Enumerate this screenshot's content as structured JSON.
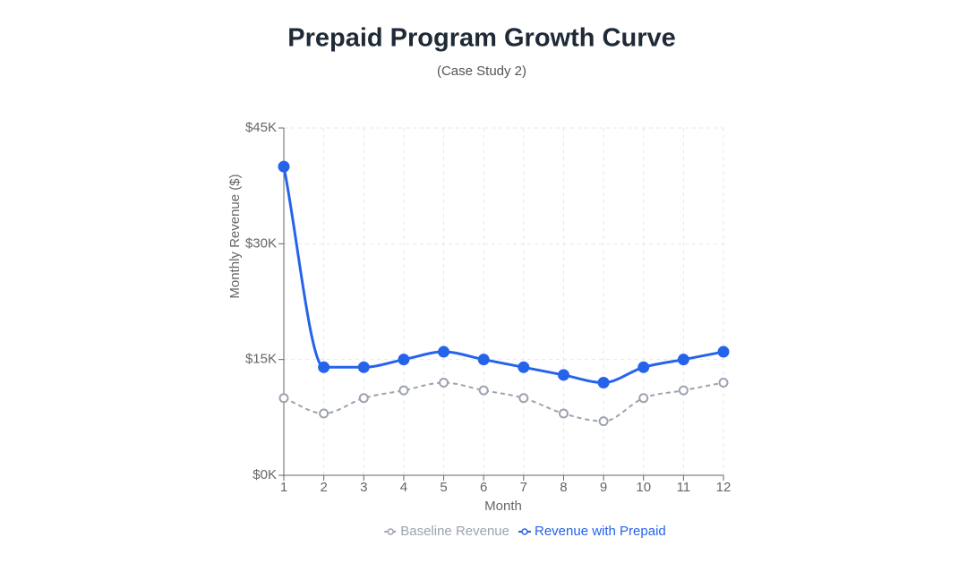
{
  "chart_data": {
    "type": "line",
    "title": "Prepaid Program Growth Curve",
    "subtitle": "(Case Study 2)",
    "x_label": "Month",
    "y_label": "Monthly Revenue ($)",
    "x": [
      1,
      2,
      3,
      4,
      5,
      6,
      7,
      8,
      9,
      10,
      11,
      12
    ],
    "xlim": [
      1,
      12
    ],
    "xticks": [
      1,
      2,
      3,
      4,
      5,
      6,
      7,
      8,
      9,
      10,
      11,
      12
    ],
    "ylim": [
      0,
      45000
    ],
    "yticks": [
      {
        "value": 0,
        "label": "$0K"
      },
      {
        "value": 15000,
        "label": "$15K"
      },
      {
        "value": 30000,
        "label": "$30K"
      },
      {
        "value": 45000,
        "label": "$45K"
      }
    ],
    "grid": true,
    "legend": "bottom",
    "series": [
      {
        "name": "Baseline Revenue",
        "color": "#9ca3af",
        "line_style": "dashed",
        "marker": "hollow",
        "values": [
          10000,
          8000,
          10000,
          11000,
          12000,
          11000,
          10000,
          8000,
          7000,
          10000,
          11000,
          12000
        ]
      },
      {
        "name": "Revenue with Prepaid",
        "color": "#2563eb",
        "line_style": "solid",
        "marker": "filled",
        "values": [
          40000,
          14000,
          14000,
          15000,
          16000,
          15000,
          14000,
          13000,
          12000,
          14000,
          15000,
          16000
        ]
      }
    ]
  }
}
